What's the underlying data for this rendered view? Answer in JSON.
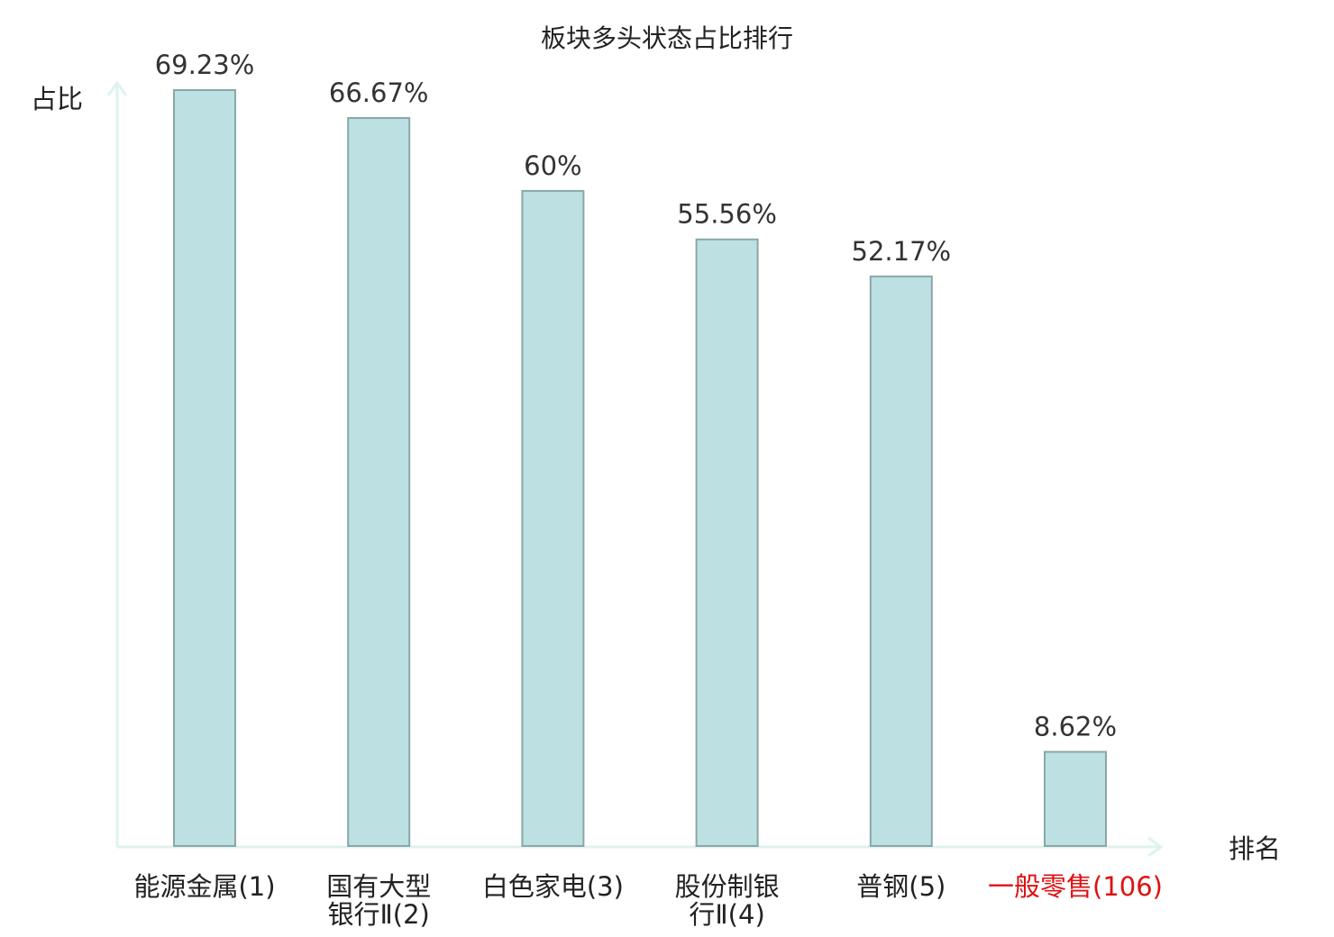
{
  "chart_data": {
    "type": "bar",
    "title": "板块多头状态占比排行",
    "ylabel": "占比",
    "xlabel": "排名",
    "categories": [
      [
        "能源金属(1)"
      ],
      [
        "国有大型",
        "银行Ⅱ(2)"
      ],
      [
        "白色家电(3)"
      ],
      [
        "股份制银",
        "行Ⅱ(4)"
      ],
      [
        "普钢(5)"
      ],
      [
        "一般零售(106)"
      ]
    ],
    "values": [
      69.23,
      66.67,
      60,
      55.56,
      52.17,
      8.62
    ],
    "value_labels": [
      "69.23%",
      "66.67%",
      "60%",
      "55.56%",
      "52.17%",
      "8.62%"
    ],
    "highlight_index": 5,
    "ylim": [
      0,
      69.23
    ],
    "grid": false,
    "colors": {
      "bar_fill": "#bde0e3",
      "bar_stroke": "#8aa7a8",
      "axis": "#dff2ef",
      "highlight_text": "#e01010"
    }
  }
}
